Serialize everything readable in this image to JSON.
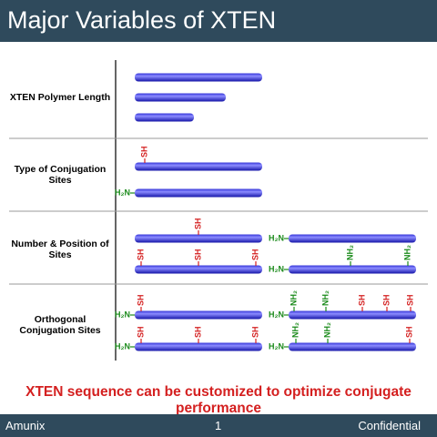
{
  "header": {
    "title": "Major Variables of XTEN"
  },
  "rows": [
    {
      "label": "XTEN Polymer Length",
      "rods": [
        {
          "sites": []
        },
        {
          "sites": []
        },
        {
          "sites": []
        }
      ]
    },
    {
      "label": "Type of Conjugation Sites",
      "rods": [
        {
          "sites": [
            "SH"
          ]
        },
        {
          "end": "H₂N",
          "sites": []
        }
      ]
    },
    {
      "label": "Number & Position of Sites",
      "rods": [
        {
          "sites": [
            "SH"
          ]
        },
        {
          "end": "H₂N",
          "sites": []
        },
        {
          "sites": [
            "SH",
            "SH",
            "SH"
          ]
        },
        {
          "end": "H₂N",
          "sites": [
            "NH₂",
            "NH₂"
          ]
        }
      ]
    },
    {
      "label": "Orthogonal Conjugation Sites",
      "rods": [
        {
          "end": "H₂N",
          "sites": [
            "SH"
          ]
        },
        {
          "end": "H₂N",
          "sites": [
            "NH₂",
            "NH₂",
            "SH",
            "SH",
            "SH"
          ]
        },
        {
          "end": "H₂N",
          "sites": [
            "SH",
            "SH",
            "SH"
          ]
        },
        {
          "end": "H₂N",
          "sites": [
            "NH₂",
            "NH₂",
            "SH"
          ]
        }
      ]
    }
  ],
  "message": "XTEN sequence can be customized to optimize conjugate performance",
  "footer": {
    "left": "Amunix",
    "center": "1",
    "right": "Confidential"
  }
}
